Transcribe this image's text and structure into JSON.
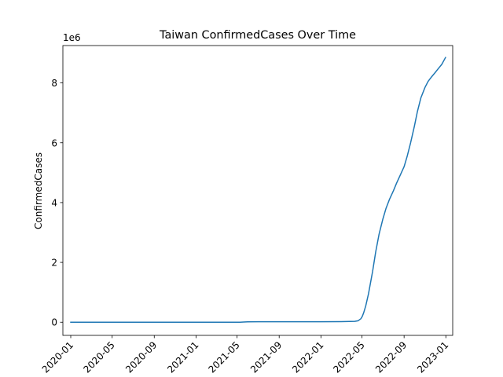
{
  "chart_data": {
    "type": "line",
    "title": "Taiwan  ConfirmedCases Over Time",
    "xlabel": "",
    "ylabel": "ConfirmedCases",
    "y_offset_label": "1e6",
    "xlim": [
      "2019-12-09",
      "2023-01-21"
    ],
    "ylim": [
      -0.44,
      9.25
    ],
    "x_ticks": [
      "2020-01",
      "2020-05",
      "2020-09",
      "2021-01",
      "2021-05",
      "2021-09",
      "2022-01",
      "2022-05",
      "2022-09",
      "2023-01"
    ],
    "y_ticks": [
      0,
      2,
      4,
      6,
      8
    ],
    "grid": false,
    "series": [
      {
        "color": "#1f77b4",
        "x": [
          "2020-01-01",
          "2020-06-01",
          "2021-01-01",
          "2021-05-10",
          "2021-05-20",
          "2021-06-01",
          "2021-07-01",
          "2021-09-01",
          "2022-01-01",
          "2022-03-01",
          "2022-04-10",
          "2022-04-20",
          "2022-04-28",
          "2022-05-02",
          "2022-05-06",
          "2022-05-12",
          "2022-05-20",
          "2022-06-01",
          "2022-06-10",
          "2022-06-20",
          "2022-07-01",
          "2022-07-10",
          "2022-07-20",
          "2022-08-01",
          "2022-08-10",
          "2022-08-20",
          "2022-09-01",
          "2022-09-10",
          "2022-09-20",
          "2022-10-01",
          "2022-10-10",
          "2022-10-20",
          "2022-11-01",
          "2022-11-10",
          "2022-11-20",
          "2022-12-01",
          "2022-12-10",
          "2022-12-20",
          "2022-12-31"
        ],
        "y": [
          0.0,
          0.0,
          0.0,
          0.0,
          0.005,
          0.012,
          0.015,
          0.016,
          0.017,
          0.02,
          0.03,
          0.05,
          0.12,
          0.2,
          0.32,
          0.55,
          0.95,
          1.7,
          2.35,
          2.95,
          3.45,
          3.8,
          4.1,
          4.4,
          4.65,
          4.9,
          5.2,
          5.55,
          6.0,
          6.55,
          7.05,
          7.5,
          7.85,
          8.05,
          8.2,
          8.35,
          8.48,
          8.62,
          8.85
        ]
      }
    ]
  }
}
